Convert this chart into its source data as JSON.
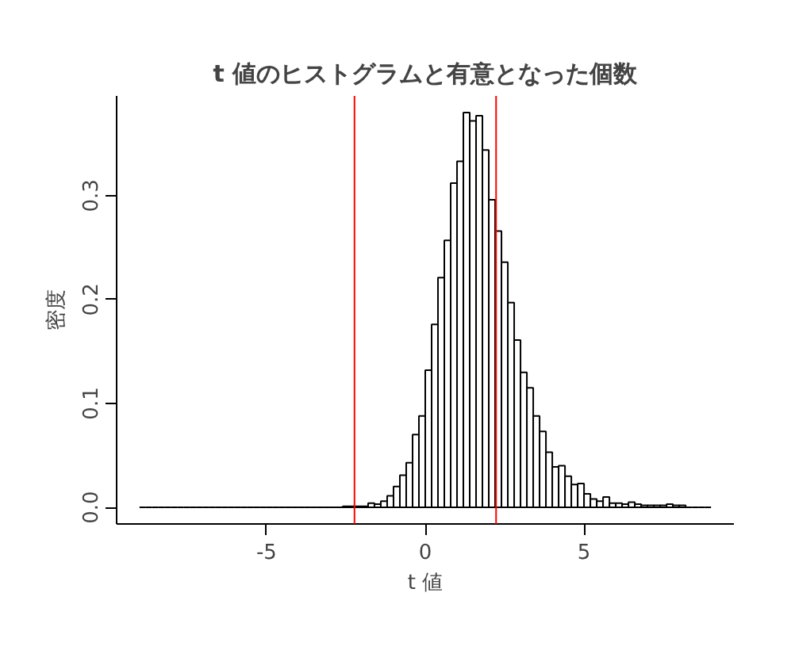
{
  "chart_data": {
    "type": "histogram",
    "title": "t 値のヒストグラムと有意となった個数",
    "xlabel": "t 値",
    "ylabel": "密度",
    "bins": [
      -9.0,
      -8.8,
      -8.6,
      -8.4,
      -8.2,
      -8.0,
      -7.8,
      -7.6,
      -7.4,
      -7.2,
      -7.0,
      -6.8,
      -6.6,
      -6.4,
      -6.2,
      -6.0,
      -5.8,
      -5.6,
      -5.4,
      -5.2,
      -5.0,
      -4.8,
      -4.6,
      -4.4,
      -4.2,
      -4.0,
      -3.8,
      -3.6,
      -3.4,
      -3.2,
      -3.0,
      -2.8,
      -2.6,
      -2.4,
      -2.2,
      -2.0,
      -1.8,
      -1.6,
      -1.4,
      -1.2,
      -1.0,
      -0.8,
      -0.6,
      -0.4,
      -0.2,
      0.0,
      0.2,
      0.4,
      0.6,
      0.8,
      1.0,
      1.2,
      1.4,
      1.6,
      1.8,
      2.0,
      2.2,
      2.4,
      2.6,
      2.8,
      3.0,
      3.2,
      3.4,
      3.6,
      3.8,
      4.0,
      4.2,
      4.4,
      4.6,
      4.8,
      5.0,
      5.2,
      5.4,
      5.6,
      5.8,
      6.0,
      6.2,
      6.4,
      6.6,
      6.8,
      7.0,
      7.2,
      7.4,
      7.6,
      7.8,
      8.0,
      8.2,
      8.4,
      8.6,
      8.8,
      9.0
    ],
    "values": [
      0,
      0,
      0,
      0,
      0,
      0,
      0,
      0,
      0,
      0,
      0,
      0,
      0,
      0,
      0,
      0,
      0,
      0,
      0,
      0,
      0,
      0,
      0,
      0,
      0,
      0,
      0,
      0,
      0,
      0,
      0,
      0,
      0.001,
      0.001,
      0.001,
      0.001,
      0.004,
      0.003,
      0.006,
      0.011,
      0.02,
      0.031,
      0.043,
      0.07,
      0.088,
      0.132,
      0.176,
      0.221,
      0.257,
      0.312,
      0.333,
      0.38,
      0.372,
      0.377,
      0.344,
      0.296,
      0.266,
      0.236,
      0.197,
      0.161,
      0.13,
      0.115,
      0.088,
      0.073,
      0.053,
      0.039,
      0.04,
      0.03,
      0.022,
      0.023,
      0.013,
      0.008,
      0.006,
      0.01,
      0.004,
      0.004,
      0.003,
      0.005,
      0.003,
      0.002,
      0.002,
      0.002,
      0.002,
      0.003,
      0.002,
      0.002,
      0,
      0,
      0,
      0
    ],
    "xlim": [
      -9.72,
      9.72
    ],
    "xticks": [
      -5,
      0,
      5
    ],
    "ylim": [
      -0.016,
      0.396
    ],
    "yticks": [
      {
        "value": 0,
        "label": "0.0"
      },
      0.1,
      0.2,
      0.3
    ],
    "ref_lines": [
      {
        "axis": "x",
        "value": -2.23,
        "color": "#ff0000"
      },
      {
        "axis": "x",
        "value": 2.23,
        "color": "#ff0000"
      }
    ],
    "grid": false
  }
}
